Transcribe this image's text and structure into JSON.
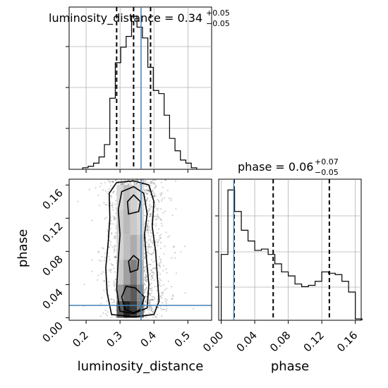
{
  "chart_data": [
    {
      "type": "histogram",
      "panel": "top-left",
      "title": {
        "main": "luminosity_distance = 0.34",
        "sup": "+0.05",
        "sub": "−0.05"
      },
      "x_range": [
        0.15,
        0.57
      ],
      "bins": {
        "edges": [
          0.19,
          0.206,
          0.222,
          0.238,
          0.254,
          0.27,
          0.286,
          0.302,
          0.318,
          0.334,
          0.35,
          0.366,
          0.382,
          0.398,
          0.414,
          0.43,
          0.446,
          0.462,
          0.478,
          0.494,
          0.51,
          0.526
        ],
        "heights": [
          0.01,
          0.02,
          0.04,
          0.08,
          0.16,
          0.46,
          0.69,
          0.79,
          0.86,
          0.99,
          0.92,
          0.85,
          0.66,
          0.51,
          0.49,
          0.35,
          0.2,
          0.12,
          0.06,
          0.04,
          0.01
        ]
      },
      "y_max": 1.05,
      "quantile_lines": [
        0.29,
        0.34,
        0.39
      ],
      "truth_value": 0.362,
      "x_ticks": [
        0.2,
        0.3,
        0.4,
        0.5
      ],
      "y_ticks_count": 4
    },
    {
      "type": "heatmap",
      "panel": "bottom-left",
      "xlabel": "luminosity_distance",
      "ylabel": "phase",
      "x_range": [
        0.15,
        0.57
      ],
      "y_range": [
        -0.003,
        0.167
      ],
      "x_ticks": [
        "0.2",
        "0.3",
        "0.4",
        "0.5"
      ],
      "y_ticks": [
        "0.00",
        "0.04",
        "0.08",
        "0.12",
        "0.16"
      ],
      "x_tick_values": [
        0.2,
        0.3,
        0.4,
        0.5
      ],
      "y_tick_values": [
        0.0,
        0.04,
        0.08,
        0.12,
        0.16
      ],
      "truth_x": 0.362,
      "truth_y": 0.015
    },
    {
      "type": "histogram",
      "panel": "bottom-right",
      "title": {
        "main": "phase = 0.06",
        "sup": "+0.07",
        "sub": "−0.05"
      },
      "xlabel": "phase",
      "x_range": [
        -0.003,
        0.167
      ],
      "bins": {
        "edges": [
          0.0,
          0.008,
          0.016,
          0.024,
          0.032,
          0.04,
          0.048,
          0.056,
          0.064,
          0.072,
          0.08,
          0.088,
          0.096,
          0.104,
          0.112,
          0.12,
          0.128,
          0.136,
          0.144,
          0.152,
          0.16,
          0.168
        ],
        "heights": [
          0.49,
          0.97,
          0.81,
          0.67,
          0.59,
          0.52,
          0.53,
          0.49,
          0.42,
          0.36,
          0.33,
          0.27,
          0.25,
          0.26,
          0.29,
          0.36,
          0.35,
          0.34,
          0.29,
          0.21,
          0.01
        ]
      },
      "y_max": 1.05,
      "quantile_lines": [
        0.0155,
        0.062,
        0.129
      ],
      "truth_value": 0.015,
      "x_ticks": [
        "0.00",
        "0.04",
        "0.08",
        "0.12",
        "0.16"
      ],
      "x_tick_values": [
        0.0,
        0.04,
        0.08,
        0.12,
        0.16
      ],
      "y_ticks_count": 4
    }
  ]
}
